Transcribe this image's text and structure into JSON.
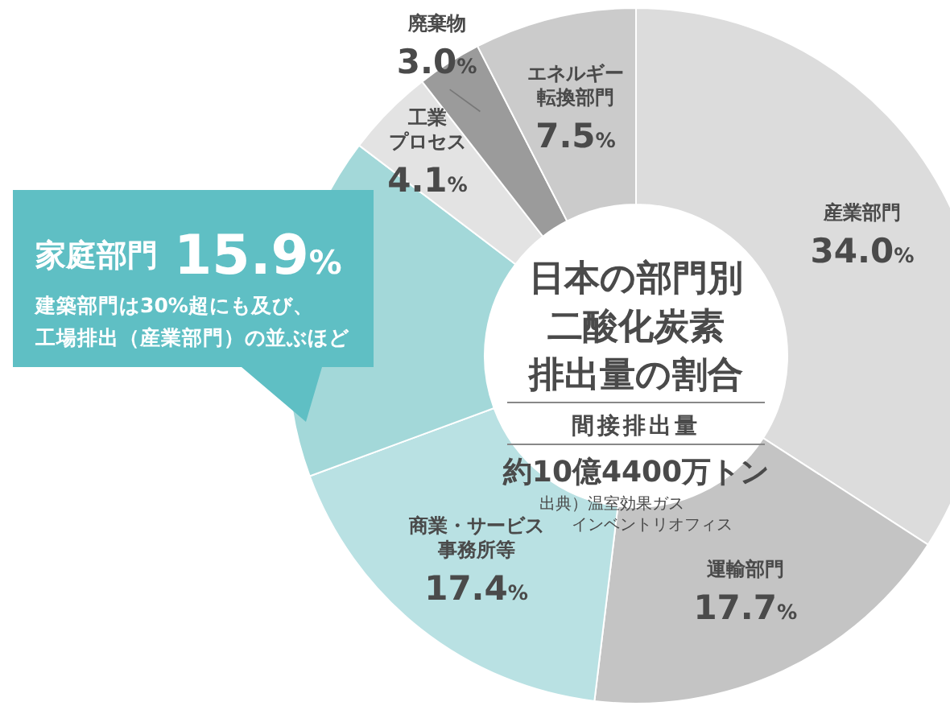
{
  "chart_data": {
    "type": "donut",
    "title": "日本の部門別二酸化炭素排出量の割合",
    "subtitle": "間接排出量",
    "categories": [
      "産業部門",
      "運輸部門",
      "商業・サービス事務所等",
      "家庭部門",
      "工業プロセス",
      "廃棄物",
      "エネルギー転換部門"
    ],
    "values": [
      34.0,
      17.7,
      17.4,
      15.9,
      4.1,
      3.0,
      7.5
    ],
    "value_labels": [
      "34.0%",
      "17.7%",
      "17.4%",
      "15.9%",
      "4.1%",
      "3.0%",
      "7.5%"
    ],
    "colors": [
      "#dcdcdc",
      "#c4c4c4",
      "#b9e1e3",
      "#a3d8d9",
      "#e3e3e3",
      "#9b9b9b",
      "#cbcbcb"
    ],
    "annotations": [
      "約10億4400万トン",
      "出典）温室効果ガスインベントリオフィス",
      {
        "text": "建築部門は30%超にも及び、工場排出（産業部門）の並ぶほど",
        "x": "家庭部門"
      }
    ],
    "legend": false
  }
}
